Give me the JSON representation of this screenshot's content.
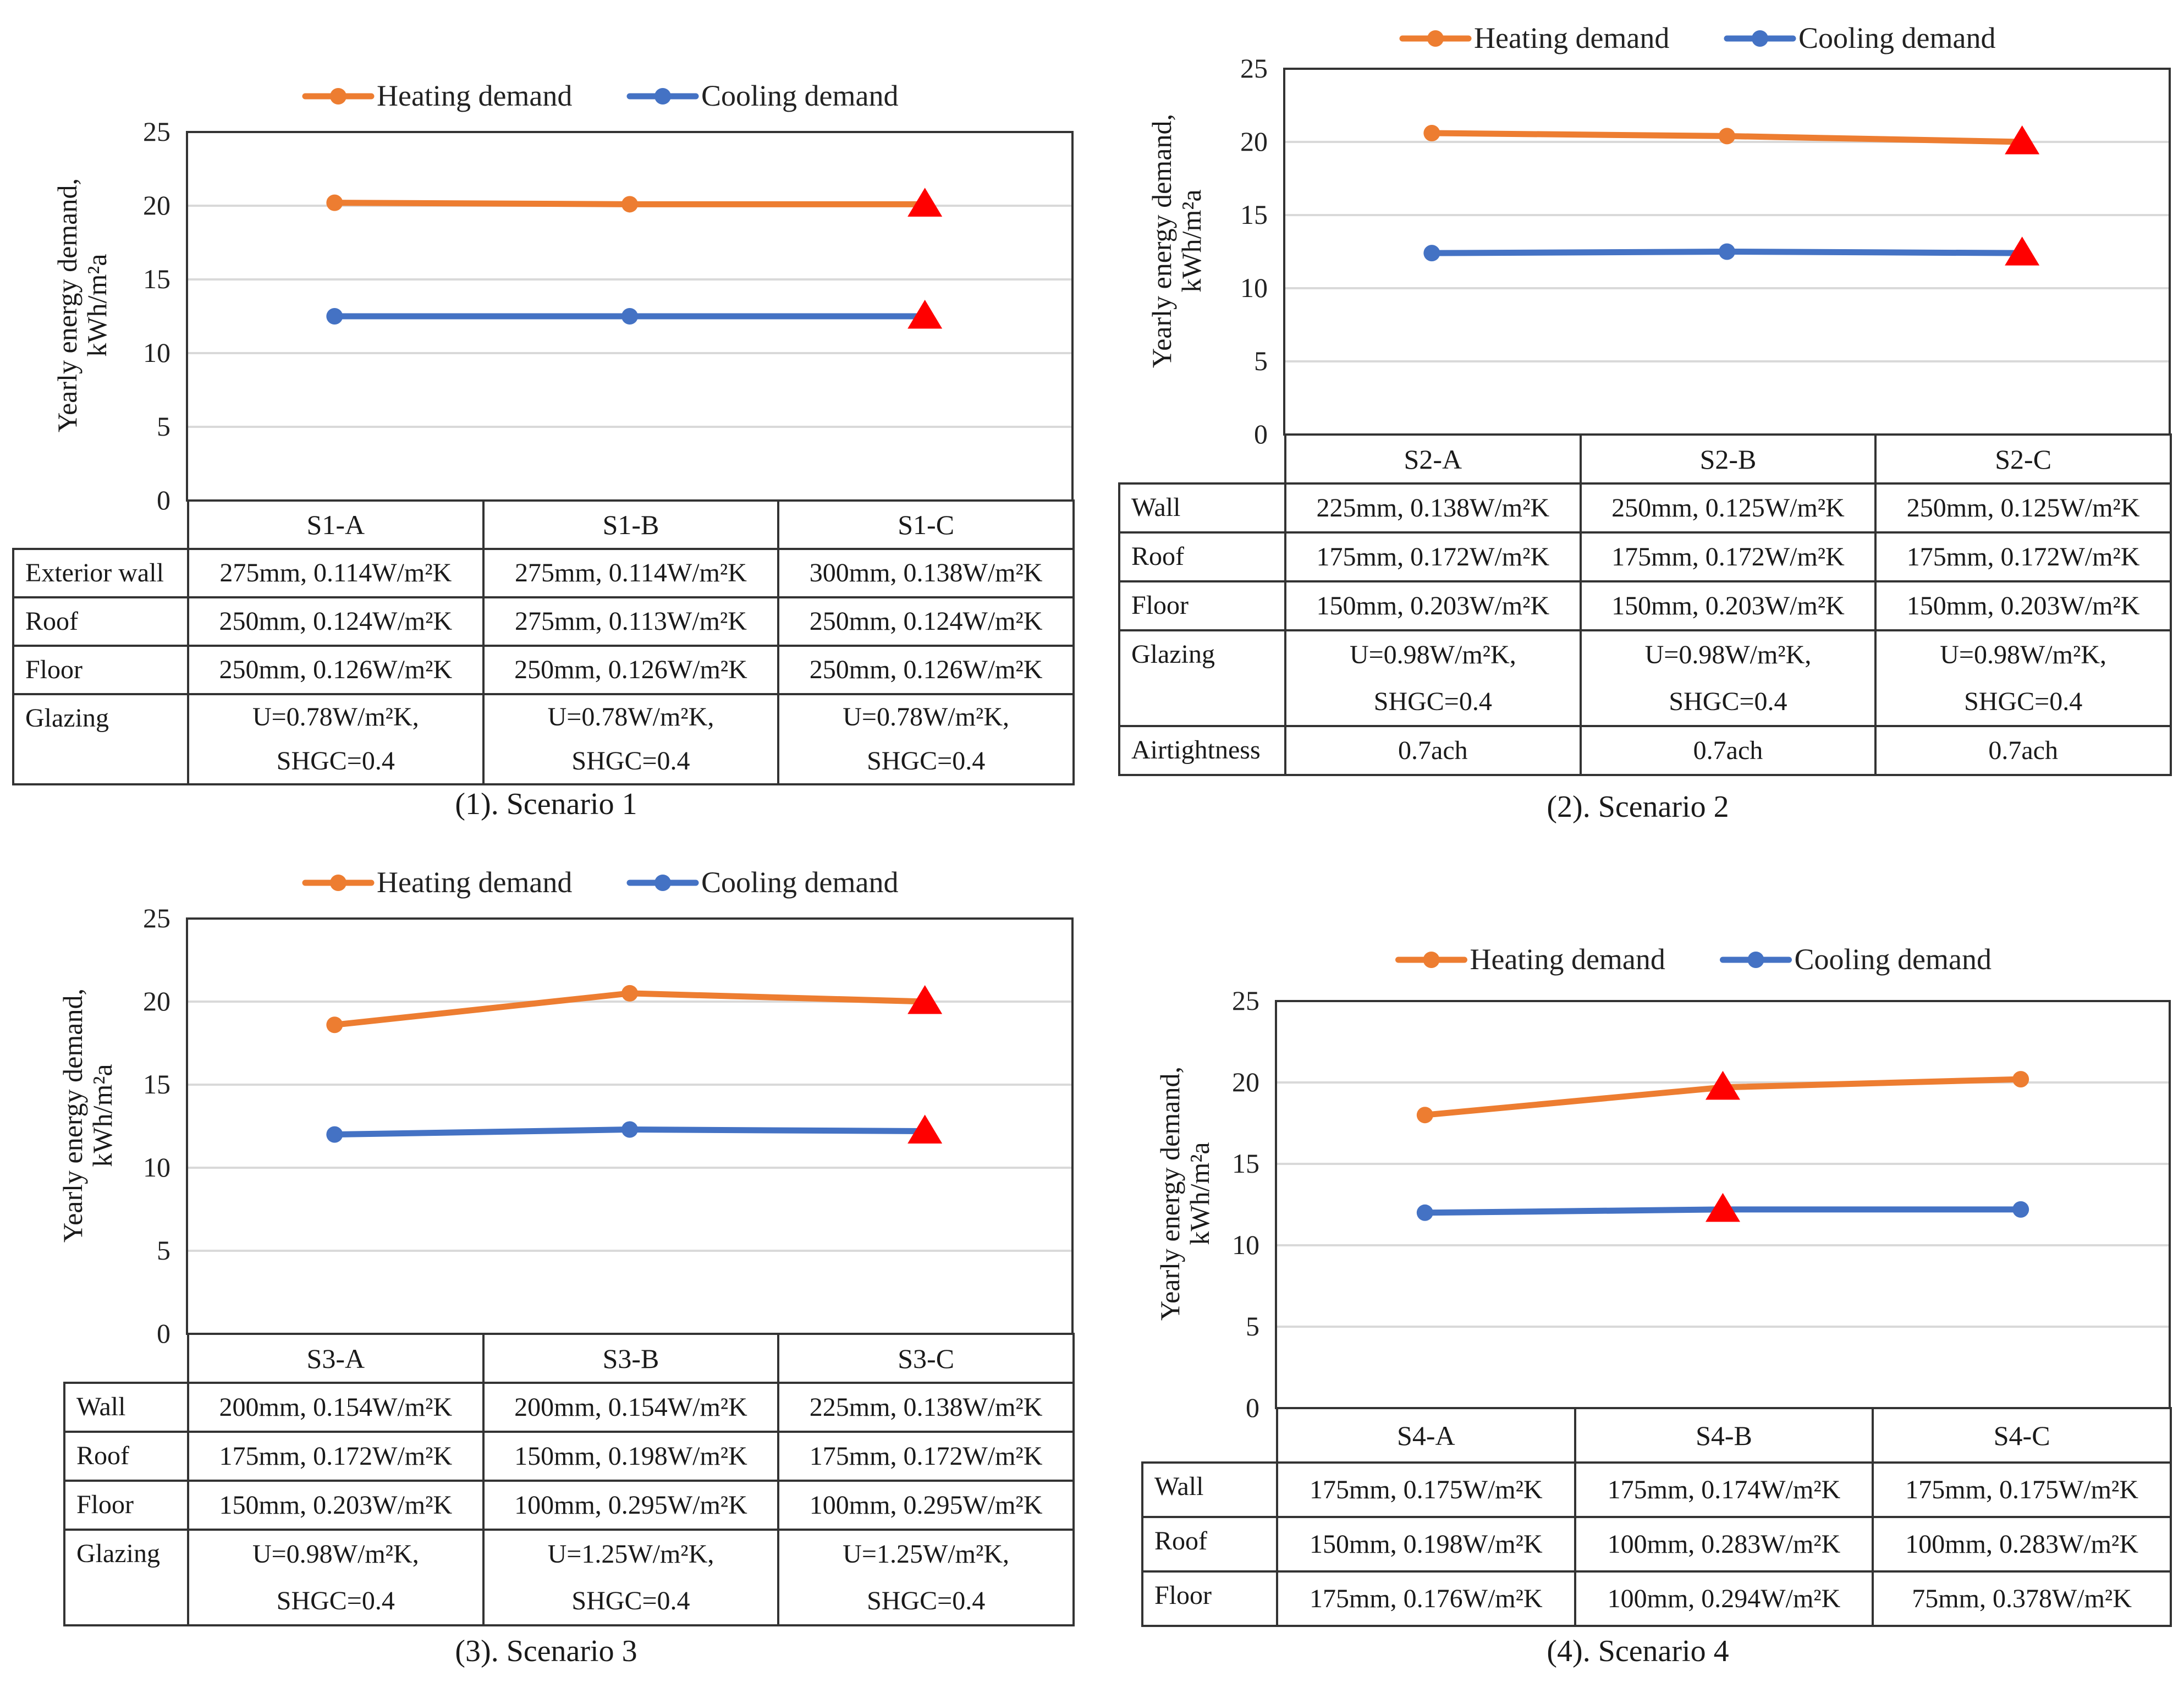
{
  "colors": {
    "heating": "#ED7D31",
    "cooling": "#4472C4",
    "marker": "#FF0000",
    "grid": "#D9D9D9",
    "frame": "#333333"
  },
  "legend": {
    "heating": "Heating demand",
    "cooling": "Cooling demand"
  },
  "chart_data": [
    {
      "type": "line",
      "caption": "(1). Scenario 1",
      "ylabel_line1": "Yearly energy demand,",
      "ylabel_line2": "kWh/m²a",
      "ylim": [
        0,
        25
      ],
      "yticks": [
        "0",
        "5",
        "10",
        "15",
        "20",
        "25"
      ],
      "categories": [
        "S1-A",
        "S1-B",
        "S1-C"
      ],
      "series": [
        {
          "name": "Heating demand",
          "values": [
            20.2,
            20.1,
            20.1
          ]
        },
        {
          "name": "Cooling demand",
          "values": [
            12.5,
            12.5,
            12.5
          ]
        }
      ],
      "highlight_index": 2,
      "table": {
        "rows": [
          {
            "label": "Exterior wall",
            "cells": [
              [
                "275mm, 0.114W/m²K"
              ],
              [
                "275mm, 0.114W/m²K"
              ],
              [
                "300mm, 0.138W/m²K"
              ]
            ]
          },
          {
            "label": "Roof",
            "cells": [
              [
                "250mm, 0.124W/m²K"
              ],
              [
                "275mm, 0.113W/m²K"
              ],
              [
                "250mm, 0.124W/m²K"
              ]
            ]
          },
          {
            "label": "Floor",
            "cells": [
              [
                "250mm, 0.126W/m²K"
              ],
              [
                "250mm, 0.126W/m²K"
              ],
              [
                "250mm, 0.126W/m²K"
              ]
            ]
          },
          {
            "label": "Glazing",
            "cells": [
              [
                "U=0.78W/m²K,",
                "SHGC=0.4"
              ],
              [
                "U=0.78W/m²K,",
                "SHGC=0.4"
              ],
              [
                "U=0.78W/m²K,",
                "SHGC=0.4"
              ]
            ]
          }
        ]
      }
    },
    {
      "type": "line",
      "caption": "(2). Scenario 2",
      "ylabel_line1": "Yearly energy demand,",
      "ylabel_line2": "kWh/m²a",
      "ylim": [
        0,
        25
      ],
      "yticks": [
        "0",
        "5",
        "10",
        "15",
        "20",
        "25"
      ],
      "categories": [
        "S2-A",
        "S2-B",
        "S2-C"
      ],
      "series": [
        {
          "name": "Heating demand",
          "values": [
            20.6,
            20.4,
            20.0
          ]
        },
        {
          "name": "Cooling demand",
          "values": [
            12.4,
            12.5,
            12.4
          ]
        }
      ],
      "highlight_index": 2,
      "table": {
        "rows": [
          {
            "label": "Wall",
            "cells": [
              [
                "225mm, 0.138W/m²K"
              ],
              [
                "250mm, 0.125W/m²K"
              ],
              [
                "250mm, 0.125W/m²K"
              ]
            ]
          },
          {
            "label": "Roof",
            "cells": [
              [
                "175mm, 0.172W/m²K"
              ],
              [
                "175mm, 0.172W/m²K"
              ],
              [
                "175mm, 0.172W/m²K"
              ]
            ]
          },
          {
            "label": "Floor",
            "cells": [
              [
                "150mm, 0.203W/m²K"
              ],
              [
                "150mm, 0.203W/m²K"
              ],
              [
                "150mm, 0.203W/m²K"
              ]
            ]
          },
          {
            "label": "Glazing",
            "cells": [
              [
                "U=0.98W/m²K,",
                "SHGC=0.4"
              ],
              [
                "U=0.98W/m²K,",
                "SHGC=0.4"
              ],
              [
                "U=0.98W/m²K,",
                "SHGC=0.4"
              ]
            ]
          },
          {
            "label": "Airtightness",
            "cells": [
              [
                "0.7ach"
              ],
              [
                "0.7ach"
              ],
              [
                "0.7ach"
              ]
            ]
          }
        ]
      }
    },
    {
      "type": "line",
      "caption": "(3). Scenario 3",
      "ylabel_line1": "Yearly energy demand,",
      "ylabel_line2": "kWh/m²a",
      "ylim": [
        0,
        25
      ],
      "yticks": [
        "0",
        "5",
        "10",
        "15",
        "20",
        "25"
      ],
      "categories": [
        "S3-A",
        "S3-B",
        "S3-C"
      ],
      "series": [
        {
          "name": "Heating demand",
          "values": [
            18.6,
            20.5,
            20.0
          ]
        },
        {
          "name": "Cooling demand",
          "values": [
            12.0,
            12.3,
            12.2
          ]
        }
      ],
      "highlight_index": 2,
      "table": {
        "rows": [
          {
            "label": "Wall",
            "cells": [
              [
                "200mm, 0.154W/m²K"
              ],
              [
                "200mm, 0.154W/m²K"
              ],
              [
                "225mm, 0.138W/m²K"
              ]
            ]
          },
          {
            "label": "Roof",
            "cells": [
              [
                "175mm, 0.172W/m²K"
              ],
              [
                "150mm, 0.198W/m²K"
              ],
              [
                "175mm, 0.172W/m²K"
              ]
            ]
          },
          {
            "label": "Floor",
            "cells": [
              [
                "150mm, 0.203W/m²K"
              ],
              [
                "100mm, 0.295W/m²K"
              ],
              [
                "100mm, 0.295W/m²K"
              ]
            ]
          },
          {
            "label": "Glazing",
            "cells": [
              [
                "U=0.98W/m²K,",
                "SHGC=0.4"
              ],
              [
                "U=1.25W/m²K,",
                "SHGC=0.4"
              ],
              [
                "U=1.25W/m²K,",
                "SHGC=0.4"
              ]
            ]
          }
        ]
      }
    },
    {
      "type": "line",
      "caption": "(4). Scenario 4",
      "ylabel_line1": "Yearly energy demand,",
      "ylabel_line2": "kWh/m²a",
      "ylim": [
        0,
        25
      ],
      "yticks": [
        "0",
        "5",
        "10",
        "15",
        "20",
        "25"
      ],
      "categories": [
        "S4-A",
        "S4-B",
        "S4-C"
      ],
      "series": [
        {
          "name": "Heating demand",
          "values": [
            18.0,
            19.7,
            20.2
          ]
        },
        {
          "name": "Cooling demand",
          "values": [
            12.0,
            12.2,
            12.2
          ]
        }
      ],
      "highlight_index": 1,
      "table": {
        "rows": [
          {
            "label": "Wall",
            "cells": [
              [
                "175mm, 0.175W/m²K"
              ],
              [
                "175mm, 0.174W/m²K"
              ],
              [
                "175mm, 0.175W/m²K"
              ]
            ]
          },
          {
            "label": "Roof",
            "cells": [
              [
                "150mm, 0.198W/m²K"
              ],
              [
                "100mm, 0.283W/m²K"
              ],
              [
                "100mm, 0.283W/m²K"
              ]
            ]
          },
          {
            "label": "Floor",
            "cells": [
              [
                "175mm, 0.176W/m²K"
              ],
              [
                "100mm, 0.294W/m²K"
              ],
              [
                "75mm, 0.378W/m²K"
              ]
            ]
          }
        ]
      }
    }
  ]
}
